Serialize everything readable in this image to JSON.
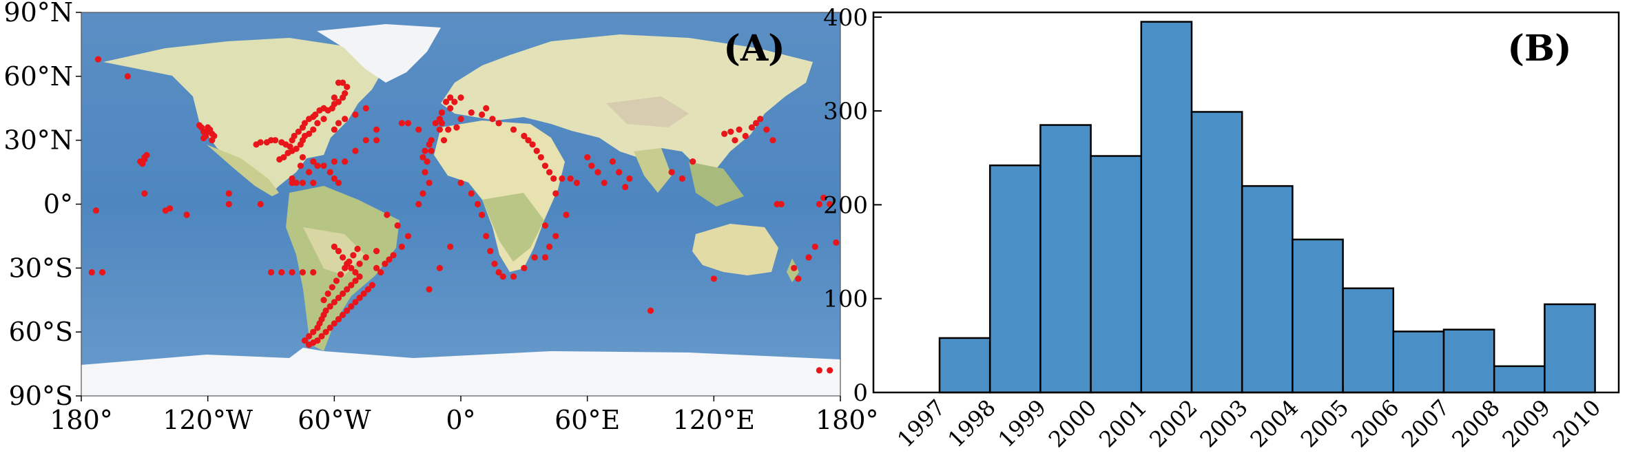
{
  "chart_data": [
    {
      "type": "scatter",
      "panel_label": "(A)",
      "x_ticks": [
        "180°",
        "120°W",
        "60°W",
        "0°",
        "60°E",
        "120°E",
        "180°"
      ],
      "y_ticks": [
        "90°N",
        "60°N",
        "30°N",
        "0°",
        "30°S",
        "60°S",
        "90°S"
      ],
      "xlim": [
        -180,
        180
      ],
      "ylim": [
        -90,
        90
      ],
      "marker_color": "#e8151b",
      "points": [
        [
          -172,
          68
        ],
        [
          -158,
          60
        ],
        [
          -173,
          -3
        ],
        [
          -170,
          -32
        ],
        [
          -150,
          5
        ],
        [
          -140,
          -3
        ],
        [
          -138,
          -2
        ],
        [
          -130,
          -5
        ],
        [
          -110,
          5
        ],
        [
          -110,
          0
        ],
        [
          -95,
          0
        ],
        [
          -80,
          10
        ],
        [
          -150,
          22
        ],
        [
          -152,
          20
        ],
        [
          -150,
          21
        ],
        [
          -149,
          23
        ],
        [
          -151,
          19
        ],
        [
          -123,
          36
        ],
        [
          -122,
          34
        ],
        [
          -120,
          34
        ],
        [
          -118,
          33
        ],
        [
          -121,
          32
        ],
        [
          -119,
          35
        ],
        [
          -117,
          32
        ],
        [
          -124,
          37
        ],
        [
          -122,
          31
        ],
        [
          -120,
          36
        ],
        [
          -118,
          30
        ],
        [
          -97,
          28
        ],
        [
          -95,
          29
        ],
        [
          -92,
          29
        ],
        [
          -90,
          30
        ],
        [
          -88,
          30
        ],
        [
          -85,
          29
        ],
        [
          -83,
          28
        ],
        [
          -81,
          27
        ],
        [
          -80,
          25
        ],
        [
          -82,
          24
        ],
        [
          -84,
          22
        ],
        [
          -86,
          21
        ],
        [
          -80,
          30
        ],
        [
          -79,
          32
        ],
        [
          -77,
          34
        ],
        [
          -75,
          36
        ],
        [
          -74,
          38
        ],
        [
          -72,
          40
        ],
        [
          -70,
          41
        ],
        [
          -69,
          42
        ],
        [
          -67,
          44
        ],
        [
          -65,
          45
        ],
        [
          -63,
          44
        ],
        [
          -61,
          45
        ],
        [
          -60,
          47
        ],
        [
          -58,
          48
        ],
        [
          -56,
          50
        ],
        [
          -55,
          52
        ],
        [
          -54,
          55
        ],
        [
          -56,
          57
        ],
        [
          -58,
          57
        ],
        [
          -60,
          50
        ],
        [
          -65,
          40
        ],
        [
          -68,
          38
        ],
        [
          -70,
          35
        ],
        [
          -72,
          33
        ],
        [
          -74,
          32
        ],
        [
          -75,
          30
        ],
        [
          -76,
          28
        ],
        [
          -78,
          26
        ],
        [
          -75,
          22
        ],
        [
          -70,
          20
        ],
        [
          -68,
          18
        ],
        [
          -65,
          18
        ],
        [
          -62,
          15
        ],
        [
          -60,
          12
        ],
        [
          -72,
          15
        ],
        [
          -76,
          18
        ],
        [
          -60,
          35
        ],
        [
          -58,
          38
        ],
        [
          -55,
          40
        ],
        [
          -50,
          42
        ],
        [
          -45,
          45
        ],
        [
          -40,
          35
        ],
        [
          -45,
          30
        ],
        [
          -50,
          25
        ],
        [
          -55,
          20
        ],
        [
          -60,
          20
        ],
        [
          -80,
          12
        ],
        [
          -78,
          10
        ],
        [
          -75,
          10
        ],
        [
          -70,
          10
        ],
        [
          -58,
          10
        ],
        [
          -40,
          30
        ],
        [
          -35,
          -5
        ],
        [
          -30,
          -10
        ],
        [
          -28,
          -20
        ],
        [
          -25,
          -15
        ],
        [
          -20,
          0
        ],
        [
          -18,
          5
        ],
        [
          -15,
          10
        ],
        [
          -17,
          15
        ],
        [
          -16,
          20
        ],
        [
          -17,
          25
        ],
        [
          -15,
          28
        ],
        [
          -14,
          30
        ],
        [
          -10,
          35
        ],
        [
          -9,
          38
        ],
        [
          -9,
          43
        ],
        [
          -5,
          45
        ],
        [
          -3,
          48
        ],
        [
          0,
          50
        ],
        [
          -5,
          50
        ],
        [
          -7,
          48
        ],
        [
          -10,
          40
        ],
        [
          -12,
          38
        ],
        [
          -20,
          35
        ],
        [
          -25,
          38
        ],
        [
          -28,
          38
        ],
        [
          -18,
          22
        ],
        [
          -14,
          25
        ],
        [
          -8,
          30
        ],
        [
          -6,
          35
        ],
        [
          -2,
          36
        ],
        [
          0,
          40
        ],
        [
          5,
          43
        ],
        [
          10,
          42
        ],
        [
          12,
          45
        ],
        [
          15,
          40
        ],
        [
          18,
          38
        ],
        [
          25,
          35
        ],
        [
          30,
          32
        ],
        [
          32,
          30
        ],
        [
          34,
          28
        ],
        [
          36,
          25
        ],
        [
          38,
          22
        ],
        [
          40,
          18
        ],
        [
          42,
          15
        ],
        [
          44,
          12
        ],
        [
          48,
          12
        ],
        [
          52,
          12
        ],
        [
          55,
          10
        ],
        [
          45,
          5
        ],
        [
          50,
          -5
        ],
        [
          40,
          -10
        ],
        [
          45,
          -15
        ],
        [
          42,
          -20
        ],
        [
          40,
          -25
        ],
        [
          35,
          -25
        ],
        [
          30,
          -30
        ],
        [
          25,
          -34
        ],
        [
          20,
          -34
        ],
        [
          18,
          -32
        ],
        [
          16,
          -28
        ],
        [
          14,
          -22
        ],
        [
          12,
          -15
        ],
        [
          10,
          -5
        ],
        [
          8,
          0
        ],
        [
          5,
          5
        ],
        [
          0,
          10
        ],
        [
          -5,
          -20
        ],
        [
          -10,
          -30
        ],
        [
          -15,
          -40
        ],
        [
          60,
          22
        ],
        [
          62,
          18
        ],
        [
          65,
          15
        ],
        [
          68,
          10
        ],
        [
          72,
          20
        ],
        [
          75,
          15
        ],
        [
          78,
          8
        ],
        [
          80,
          12
        ],
        [
          90,
          -50
        ],
        [
          100,
          15
        ],
        [
          105,
          12
        ],
        [
          110,
          20
        ],
        [
          120,
          -35
        ],
        [
          125,
          33
        ],
        [
          128,
          34
        ],
        [
          130,
          30
        ],
        [
          132,
          35
        ],
        [
          135,
          32
        ],
        [
          138,
          36
        ],
        [
          140,
          38
        ],
        [
          142,
          40
        ],
        [
          145,
          35
        ],
        [
          148,
          30
        ],
        [
          150,
          0
        ],
        [
          152,
          0
        ],
        [
          158,
          -30
        ],
        [
          160,
          -35
        ],
        [
          165,
          -25
        ],
        [
          168,
          -20
        ],
        [
          170,
          0
        ],
        [
          172,
          3
        ],
        [
          175,
          0
        ],
        [
          178,
          -18
        ],
        [
          170,
          -78
        ],
        [
          175,
          -78
        ],
        [
          -60,
          -20
        ],
        [
          -58,
          -22
        ],
        [
          -56,
          -25
        ],
        [
          -54,
          -28
        ],
        [
          -52,
          -30
        ],
        [
          -50,
          -32
        ],
        [
          -48,
          -34
        ],
        [
          -50,
          -36
        ],
        [
          -52,
          -38
        ],
        [
          -54,
          -40
        ],
        [
          -56,
          -42
        ],
        [
          -58,
          -44
        ],
        [
          -60,
          -46
        ],
        [
          -62,
          -48
        ],
        [
          -64,
          -50
        ],
        [
          -65,
          -52
        ],
        [
          -66,
          -54
        ],
        [
          -67,
          -56
        ],
        [
          -68,
          -58
        ],
        [
          -70,
          -60
        ],
        [
          -72,
          -62
        ],
        [
          -74,
          -64
        ],
        [
          -72,
          -66
        ],
        [
          -70,
          -65
        ],
        [
          -68,
          -64
        ],
        [
          -66,
          -62
        ],
        [
          -64,
          -60
        ],
        [
          -62,
          -58
        ],
        [
          -60,
          -56
        ],
        [
          -58,
          -54
        ],
        [
          -56,
          -52
        ],
        [
          -54,
          -50
        ],
        [
          -52,
          -48
        ],
        [
          -50,
          -46
        ],
        [
          -48,
          -44
        ],
        [
          -46,
          -42
        ],
        [
          -44,
          -40
        ],
        [
          -42,
          -38
        ],
        [
          -40,
          -30
        ],
        [
          -38,
          -32
        ],
        [
          -36,
          -28
        ],
        [
          -34,
          -26
        ],
        [
          -32,
          -24
        ],
        [
          -40,
          -22
        ],
        [
          -45,
          -25
        ],
        [
          -48,
          -28
        ],
        [
          -65,
          -45
        ],
        [
          -63,
          -42
        ],
        [
          -61,
          -39
        ],
        [
          -59,
          -36
        ],
        [
          -57,
          -33
        ],
        [
          -55,
          -30
        ],
        [
          -53,
          -27
        ],
        [
          -51,
          -24
        ],
        [
          -49,
          -21
        ],
        [
          -90,
          -32
        ],
        [
          -85,
          -32
        ],
        [
          -80,
          -32
        ],
        [
          -75,
          -32
        ],
        [
          -70,
          -32
        ],
        [
          -175,
          -32
        ]
      ]
    },
    {
      "type": "bar",
      "panel_label": "(B)",
      "categories": [
        "1997",
        "1998",
        "1999",
        "2000",
        "2001",
        "2002",
        "2003",
        "2004",
        "2005",
        "2006",
        "2007",
        "2008",
        "2009"
      ],
      "edge_labels": [
        "1997",
        "1998",
        "1999",
        "2000",
        "2001",
        "2002",
        "2003",
        "2004",
        "2005",
        "2006",
        "2007",
        "2008",
        "2009",
        "2010"
      ],
      "values": [
        58,
        242,
        285,
        252,
        395,
        299,
        220,
        163,
        111,
        65,
        67,
        28,
        94
      ],
      "y_ticks": [
        0,
        100,
        200,
        300,
        400
      ],
      "ylim": [
        0,
        405
      ],
      "bar_color": "#4a90c6"
    }
  ]
}
